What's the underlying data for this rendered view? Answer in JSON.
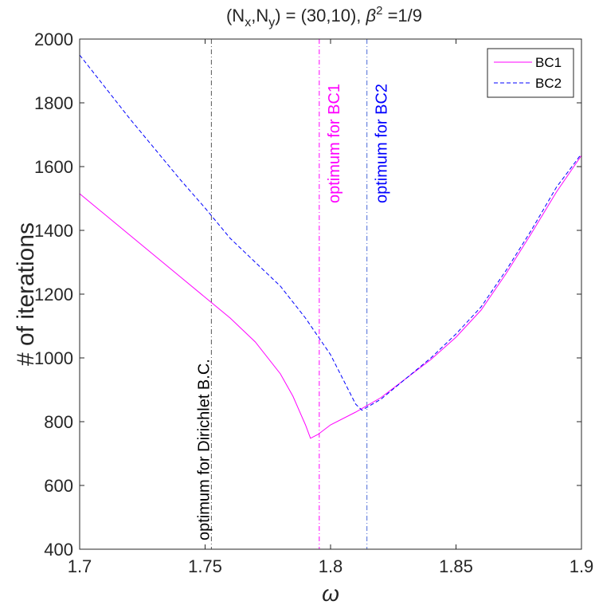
{
  "chart_data": {
    "type": "line",
    "title_prefix": "(N",
    "title_sub_x": "x",
    "title_mid": ",N",
    "title_sub_y": "y",
    "title_suffix": ") = (30,10),  ",
    "title_beta": "β",
    "title_beta_sup": "2",
    "title_beta_value": " =1/9",
    "xlabel": "ω",
    "ylabel": "# of iterations",
    "xlim": [
      1.7,
      1.9
    ],
    "ylim": [
      400,
      2000
    ],
    "xticks": [
      1.7,
      1.75,
      1.8,
      1.85,
      1.9
    ],
    "xtick_labels": [
      "1.7",
      "1.75",
      "1.8",
      "1.85",
      "1.9"
    ],
    "yticks": [
      400,
      600,
      800,
      1000,
      1200,
      1400,
      1600,
      1800,
      2000
    ],
    "ytick_labels": [
      "400",
      "600",
      "800",
      "1000",
      "1200",
      "1400",
      "1600",
      "1800",
      "2000"
    ],
    "grid": false,
    "legend_position": "top-right",
    "series": [
      {
        "name": "BC1",
        "color": "#ff00ff",
        "style": "solid",
        "x": [
          1.7,
          1.72,
          1.74,
          1.76,
          1.77,
          1.78,
          1.785,
          1.79,
          1.792,
          1.795,
          1.8,
          1.81,
          1.82,
          1.83,
          1.84,
          1.85,
          1.86,
          1.87,
          1.88,
          1.89,
          1.9
        ],
        "y": [
          1515,
          1385,
          1255,
          1125,
          1050,
          950,
          880,
          790,
          748,
          760,
          790,
          830,
          875,
          935,
          995,
          1065,
          1150,
          1265,
          1390,
          1520,
          1635
        ]
      },
      {
        "name": "BC2",
        "color": "#0000ff",
        "style": "dashed",
        "x": [
          1.7,
          1.72,
          1.74,
          1.75,
          1.76,
          1.78,
          1.79,
          1.8,
          1.81,
          1.8125,
          1.82,
          1.83,
          1.84,
          1.85,
          1.86,
          1.87,
          1.88,
          1.89,
          1.9
        ],
        "y": [
          1950,
          1750,
          1560,
          1470,
          1375,
          1225,
          1125,
          1010,
          855,
          836,
          870,
          935,
          1000,
          1075,
          1160,
          1275,
          1400,
          1535,
          1640
        ]
      }
    ],
    "vlines": [
      {
        "x": 1.7525,
        "color": "#555555",
        "label": "optimum for Dirichlet B.C.",
        "label_color": "#000000"
      },
      {
        "x": 1.7955,
        "color": "#ff00ff",
        "label": "optimum for BC1",
        "label_color": "#ff00ff"
      },
      {
        "x": 1.8145,
        "color": "#4a6ad8",
        "label": "optimum for BC2",
        "label_color": "#0000ff"
      }
    ]
  }
}
